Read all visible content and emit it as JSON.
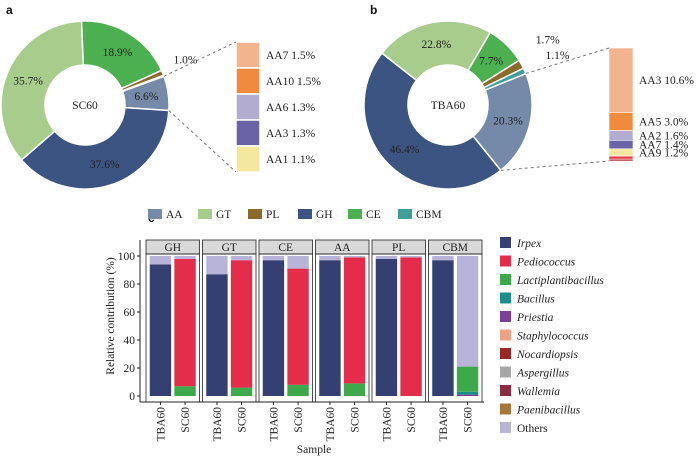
{
  "chart_data": [
    {
      "type": "pie",
      "panel": "a",
      "center_label": "SC60",
      "slices": [
        {
          "label": "AA",
          "value": 6.6,
          "display": "6.6%",
          "color": "#7589a8"
        },
        {
          "label": "GH",
          "value": 37.6,
          "display": "37.6%",
          "color": "#3c5482"
        },
        {
          "label": "GT",
          "value": 35.7,
          "display": "35.7%",
          "color": "#a8cc8c"
        },
        {
          "label": "CE",
          "value": 18.9,
          "display": "18.9%",
          "color": "#4caf50"
        },
        {
          "label": "PL",
          "value": 1.0,
          "display": "1.0%",
          "color": "#8b6a2a"
        },
        {
          "label": "CBM",
          "value": 0.2,
          "display": "",
          "color": "#3e9e9a"
        }
      ],
      "breakdown": [
        {
          "label": "AA7 1.5%",
          "value": 1.5,
          "color": "#f2b48c"
        },
        {
          "label": "AA10 1.5%",
          "value": 1.5,
          "color": "#f08a3c"
        },
        {
          "label": "AA6 1.3%",
          "value": 1.3,
          "color": "#b3acd1"
        },
        {
          "label": "AA3 1.3%",
          "value": 1.3,
          "color": "#6a63a6"
        },
        {
          "label": "AA1 1.1%",
          "value": 1.1,
          "color": "#f4e8a0"
        }
      ]
    },
    {
      "type": "pie",
      "panel": "b",
      "center_label": "TBA60",
      "slices": [
        {
          "label": "AA",
          "value": 20.3,
          "display": "20.3%",
          "color": "#7589a8"
        },
        {
          "label": "GH",
          "value": 46.4,
          "display": "46.4%",
          "color": "#3c5482"
        },
        {
          "label": "GT",
          "value": 22.8,
          "display": "22.8%",
          "color": "#a8cc8c"
        },
        {
          "label": "CE",
          "value": 7.7,
          "display": "7.7%",
          "color": "#4caf50"
        },
        {
          "label": "PL",
          "value": 1.7,
          "display": "1.7%",
          "color": "#8b6a2a"
        },
        {
          "label": "CBM",
          "value": 1.1,
          "display": "1.1%",
          "color": "#3e9e9a"
        }
      ],
      "breakdown": [
        {
          "label": "AA3 10.6%",
          "value": 10.6,
          "color": "#f2b48c"
        },
        {
          "label": "AA5 3.0%",
          "value": 3.0,
          "color": "#f08a3c"
        },
        {
          "label": "AA2 1.6%",
          "value": 1.6,
          "color": "#b3acd1"
        },
        {
          "label": "AA7 1.4%",
          "value": 1.4,
          "color": "#6a63a6"
        },
        {
          "label": "AA9 1.2%",
          "value": 1.2,
          "color": "#f4e8a0"
        },
        {
          "label": "",
          "value": 0.5,
          "color": "#e63946"
        },
        {
          "label": "",
          "value": 0.3,
          "color": "#b22222"
        }
      ]
    },
    {
      "type": "bar",
      "panel": "c",
      "stacked": true,
      "groups": [
        "GH",
        "GT",
        "CE",
        "AA",
        "PL",
        "CBM"
      ],
      "categories": [
        "TBA60",
        "SC60"
      ],
      "xlabel": "Sample",
      "ylabel": "Relative contribution (%)",
      "ylim": [
        0,
        100
      ],
      "yticks": [
        0,
        20,
        40,
        60,
        80,
        100
      ],
      "bars": [
        {
          "group": "GH",
          "sample": "TBA60",
          "segments": [
            {
              "taxon": "Irpex",
              "value": 94
            },
            {
              "taxon": "Others",
              "value": 6
            }
          ]
        },
        {
          "group": "GH",
          "sample": "SC60",
          "segments": [
            {
              "taxon": "Lactiplantibacillus",
              "value": 7
            },
            {
              "taxon": "Pediococcus",
              "value": 91
            },
            {
              "taxon": "Others",
              "value": 2
            }
          ]
        },
        {
          "group": "GT",
          "sample": "TBA60",
          "segments": [
            {
              "taxon": "Irpex",
              "value": 87
            },
            {
              "taxon": "Others",
              "value": 13
            }
          ]
        },
        {
          "group": "GT",
          "sample": "SC60",
          "segments": [
            {
              "taxon": "Lactiplantibacillus",
              "value": 6
            },
            {
              "taxon": "Pediococcus",
              "value": 91
            },
            {
              "taxon": "Others",
              "value": 3
            }
          ]
        },
        {
          "group": "CE",
          "sample": "TBA60",
          "segments": [
            {
              "taxon": "Irpex",
              "value": 97
            },
            {
              "taxon": "Others",
              "value": 3
            }
          ]
        },
        {
          "group": "CE",
          "sample": "SC60",
          "segments": [
            {
              "taxon": "Lactiplantibacillus",
              "value": 8
            },
            {
              "taxon": "Pediococcus",
              "value": 83
            },
            {
              "taxon": "Others",
              "value": 9
            }
          ]
        },
        {
          "group": "AA",
          "sample": "TBA60",
          "segments": [
            {
              "taxon": "Irpex",
              "value": 97
            },
            {
              "taxon": "Others",
              "value": 3
            }
          ]
        },
        {
          "group": "AA",
          "sample": "SC60",
          "segments": [
            {
              "taxon": "Lactiplantibacillus",
              "value": 9
            },
            {
              "taxon": "Pediococcus",
              "value": 90
            },
            {
              "taxon": "Others",
              "value": 1
            }
          ]
        },
        {
          "group": "PL",
          "sample": "TBA60",
          "segments": [
            {
              "taxon": "Irpex",
              "value": 98
            },
            {
              "taxon": "Others",
              "value": 2
            }
          ]
        },
        {
          "group": "PL",
          "sample": "SC60",
          "segments": [
            {
              "taxon": "Pediococcus",
              "value": 99
            },
            {
              "taxon": "Others",
              "value": 1
            }
          ]
        },
        {
          "group": "CBM",
          "sample": "TBA60",
          "segments": [
            {
              "taxon": "Irpex",
              "value": 97
            },
            {
              "taxon": "Others",
              "value": 3
            }
          ]
        },
        {
          "group": "CBM",
          "sample": "SC60",
          "segments": [
            {
              "taxon": "Priestia",
              "value": 1
            },
            {
              "taxon": "Bacillus",
              "value": 2
            },
            {
              "taxon": "Lactiplantibacillus",
              "value": 18
            },
            {
              "taxon": "Others",
              "value": 79
            }
          ]
        }
      ]
    }
  ],
  "panel_letters": {
    "a": "a",
    "b": "b",
    "c": "c"
  },
  "pie_legend": [
    {
      "label": "AA",
      "color": "#7589a8"
    },
    {
      "label": "GT",
      "color": "#a8cc8c"
    },
    {
      "label": "PL",
      "color": "#8b6a2a"
    },
    {
      "label": "GH",
      "color": "#3c5482"
    },
    {
      "label": "CE",
      "color": "#4caf50"
    },
    {
      "label": "CBM",
      "color": "#3e9e9a"
    }
  ],
  "taxa_legend": [
    {
      "label": "Irpex",
      "color": "#343f72",
      "italic": true
    },
    {
      "label": "Pediococcus",
      "color": "#e32d4a",
      "italic": true
    },
    {
      "label": "Lactiplantibacillus",
      "color": "#3da94a",
      "italic": true
    },
    {
      "label": "Bacillus",
      "color": "#1a8f8c",
      "italic": true
    },
    {
      "label": "Priestia",
      "color": "#7b3f98",
      "italic": true
    },
    {
      "label": "Staphylococcus",
      "color": "#f0a184",
      "italic": true
    },
    {
      "label": "Nocardiopsis",
      "color": "#9a2626",
      "italic": true
    },
    {
      "label": "Aspergillus",
      "color": "#a7a7a7",
      "italic": true
    },
    {
      "label": "Wallemia",
      "color": "#8c2a3e",
      "italic": true
    },
    {
      "label": "Paenibacillus",
      "color": "#a8773a",
      "italic": true
    },
    {
      "label": "Others",
      "color": "#b8b3d8",
      "italic": false
    }
  ]
}
